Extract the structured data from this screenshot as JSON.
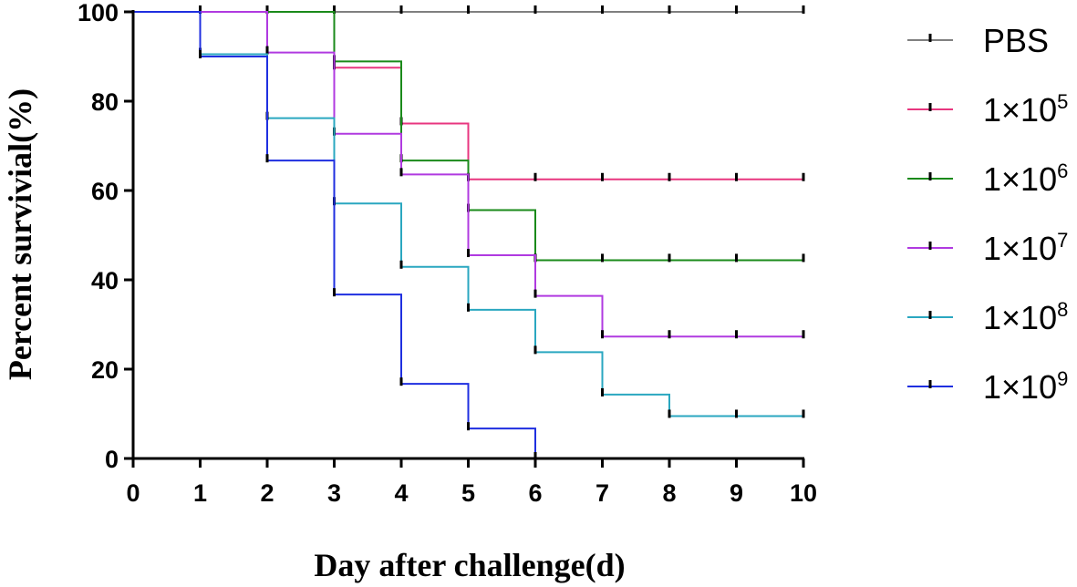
{
  "chart_data": {
    "type": "line",
    "subtype": "kaplan-meier survival step",
    "xlabel": "Day after challenge(d)",
    "ylabel": "Percent survivial(%)",
    "xlim": [
      0,
      10
    ],
    "ylim": [
      0,
      100
    ],
    "xticks": [
      "0",
      "1",
      "2",
      "3",
      "4",
      "5",
      "6",
      "7",
      "8",
      "9",
      "10"
    ],
    "yticks": [
      "0",
      "20",
      "40",
      "60",
      "80",
      "100"
    ],
    "legend_position": "right",
    "grid": false,
    "censor_marks": true,
    "series": [
      {
        "name": "PBS",
        "base": "",
        "exponent": "",
        "color": "#808080",
        "steps": [
          [
            0,
            100
          ],
          [
            10,
            100
          ]
        ],
        "censor_marks": [
          [
            1,
            100
          ],
          [
            2,
            100
          ],
          [
            3,
            100
          ],
          [
            4,
            100
          ],
          [
            5,
            100
          ],
          [
            6,
            100
          ],
          [
            7,
            100
          ],
          [
            8,
            100
          ],
          [
            9,
            100
          ],
          [
            10,
            100
          ]
        ]
      },
      {
        "name": "1×10^5",
        "base": "1×10",
        "exponent": "5",
        "color": "#e8367f",
        "steps": [
          [
            0,
            100
          ],
          [
            3,
            87.5
          ],
          [
            4,
            75
          ],
          [
            5,
            62.5
          ],
          [
            10,
            62.5
          ]
        ],
        "censor_marks": [
          [
            1,
            100
          ],
          [
            2,
            100
          ],
          [
            3,
            87.5
          ],
          [
            4,
            75
          ],
          [
            5,
            62.5
          ],
          [
            6,
            62.5
          ],
          [
            7,
            62.5
          ],
          [
            8,
            62.5
          ],
          [
            9,
            62.5
          ],
          [
            10,
            62.5
          ]
        ]
      },
      {
        "name": "1×10^6",
        "base": "1×10",
        "exponent": "6",
        "color": "#1a8a1a",
        "steps": [
          [
            0,
            100
          ],
          [
            3,
            88.9
          ],
          [
            4,
            66.7
          ],
          [
            5,
            55.6
          ],
          [
            6,
            44.4
          ],
          [
            10,
            44.4
          ]
        ],
        "censor_marks": [
          [
            3,
            88.9
          ],
          [
            4,
            66.7
          ],
          [
            5,
            55.6
          ],
          [
            6,
            44.4
          ],
          [
            7,
            44.4
          ],
          [
            8,
            44.4
          ],
          [
            9,
            44.4
          ],
          [
            10,
            44.4
          ]
        ]
      },
      {
        "name": "1×10^7",
        "base": "1×10",
        "exponent": "7",
        "color": "#b03ae0",
        "steps": [
          [
            0,
            100
          ],
          [
            2,
            90.9
          ],
          [
            3,
            72.7
          ],
          [
            4,
            63.6
          ],
          [
            5,
            45.5
          ],
          [
            6,
            36.4
          ],
          [
            7,
            27.3
          ],
          [
            10,
            27.3
          ]
        ],
        "censor_marks": [
          [
            2,
            90.9
          ],
          [
            3,
            72.7
          ],
          [
            4,
            63.6
          ],
          [
            5,
            45.5
          ],
          [
            6,
            36.4
          ],
          [
            7,
            27.3
          ],
          [
            8,
            27.3
          ],
          [
            9,
            27.3
          ],
          [
            10,
            27.3
          ]
        ]
      },
      {
        "name": "1×10^8",
        "base": "1×10",
        "exponent": "8",
        "color": "#2aa7c0",
        "steps": [
          [
            0,
            100
          ],
          [
            1,
            90.5
          ],
          [
            2,
            76.2
          ],
          [
            3,
            57.1
          ],
          [
            4,
            42.9
          ],
          [
            5,
            33.3
          ],
          [
            6,
            23.8
          ],
          [
            7,
            14.3
          ],
          [
            8,
            9.5
          ],
          [
            10,
            9.5
          ]
        ],
        "censor_marks": [
          [
            1,
            90.5
          ],
          [
            2,
            76.2
          ],
          [
            3,
            57.1
          ],
          [
            4,
            42.9
          ],
          [
            5,
            33.3
          ],
          [
            6,
            23.8
          ],
          [
            7,
            14.3
          ],
          [
            8,
            9.5
          ],
          [
            9,
            9.5
          ],
          [
            10,
            9.5
          ]
        ]
      },
      {
        "name": "1×10^9",
        "base": "1×10",
        "exponent": "9",
        "color": "#1f2fe0",
        "steps": [
          [
            0,
            100
          ],
          [
            1,
            90
          ],
          [
            2,
            66.7
          ],
          [
            3,
            36.7
          ],
          [
            4,
            16.7
          ],
          [
            5,
            6.7
          ],
          [
            6,
            0
          ]
        ],
        "censor_marks": [
          [
            1,
            90
          ],
          [
            2,
            66.7
          ],
          [
            3,
            36.7
          ],
          [
            4,
            16.7
          ],
          [
            5,
            6.7
          ],
          [
            6,
            0
          ]
        ]
      }
    ]
  }
}
